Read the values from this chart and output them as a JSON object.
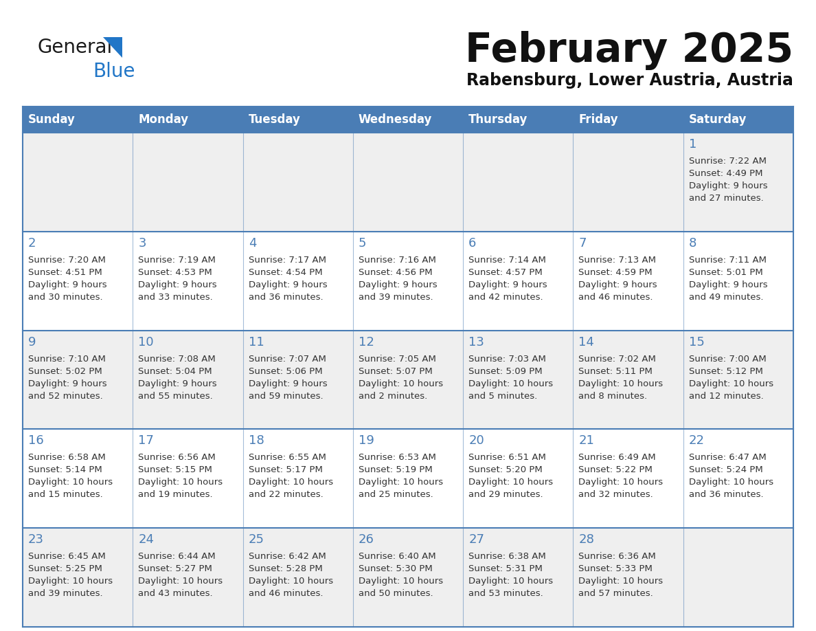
{
  "title": "February 2025",
  "subtitle": "Rabensburg, Lower Austria, Austria",
  "days_of_week": [
    "Sunday",
    "Monday",
    "Tuesday",
    "Wednesday",
    "Thursday",
    "Friday",
    "Saturday"
  ],
  "header_bg": "#4a7db5",
  "header_text": "#ffffff",
  "row_bg_odd": "#efefef",
  "row_bg_even": "#ffffff",
  "day_number_color": "#4a7db5",
  "text_color": "#333333",
  "border_color": "#4a7db5",
  "logo_black": "#1a1a1a",
  "logo_blue": "#2176c7",
  "title_color": "#111111",
  "subtitle_color": "#111111",
  "calendar_data": [
    [
      null,
      null,
      null,
      null,
      null,
      null,
      {
        "day": 1,
        "sunrise": "7:22 AM",
        "sunset": "4:49 PM",
        "daylight": "9 hours\nand 27 minutes."
      }
    ],
    [
      {
        "day": 2,
        "sunrise": "7:20 AM",
        "sunset": "4:51 PM",
        "daylight": "9 hours\nand 30 minutes."
      },
      {
        "day": 3,
        "sunrise": "7:19 AM",
        "sunset": "4:53 PM",
        "daylight": "9 hours\nand 33 minutes."
      },
      {
        "day": 4,
        "sunrise": "7:17 AM",
        "sunset": "4:54 PM",
        "daylight": "9 hours\nand 36 minutes."
      },
      {
        "day": 5,
        "sunrise": "7:16 AM",
        "sunset": "4:56 PM",
        "daylight": "9 hours\nand 39 minutes."
      },
      {
        "day": 6,
        "sunrise": "7:14 AM",
        "sunset": "4:57 PM",
        "daylight": "9 hours\nand 42 minutes."
      },
      {
        "day": 7,
        "sunrise": "7:13 AM",
        "sunset": "4:59 PM",
        "daylight": "9 hours\nand 46 minutes."
      },
      {
        "day": 8,
        "sunrise": "7:11 AM",
        "sunset": "5:01 PM",
        "daylight": "9 hours\nand 49 minutes."
      }
    ],
    [
      {
        "day": 9,
        "sunrise": "7:10 AM",
        "sunset": "5:02 PM",
        "daylight": "9 hours\nand 52 minutes."
      },
      {
        "day": 10,
        "sunrise": "7:08 AM",
        "sunset": "5:04 PM",
        "daylight": "9 hours\nand 55 minutes."
      },
      {
        "day": 11,
        "sunrise": "7:07 AM",
        "sunset": "5:06 PM",
        "daylight": "9 hours\nand 59 minutes."
      },
      {
        "day": 12,
        "sunrise": "7:05 AM",
        "sunset": "5:07 PM",
        "daylight": "10 hours\nand 2 minutes."
      },
      {
        "day": 13,
        "sunrise": "7:03 AM",
        "sunset": "5:09 PM",
        "daylight": "10 hours\nand 5 minutes."
      },
      {
        "day": 14,
        "sunrise": "7:02 AM",
        "sunset": "5:11 PM",
        "daylight": "10 hours\nand 8 minutes."
      },
      {
        "day": 15,
        "sunrise": "7:00 AM",
        "sunset": "5:12 PM",
        "daylight": "10 hours\nand 12 minutes."
      }
    ],
    [
      {
        "day": 16,
        "sunrise": "6:58 AM",
        "sunset": "5:14 PM",
        "daylight": "10 hours\nand 15 minutes."
      },
      {
        "day": 17,
        "sunrise": "6:56 AM",
        "sunset": "5:15 PM",
        "daylight": "10 hours\nand 19 minutes."
      },
      {
        "day": 18,
        "sunrise": "6:55 AM",
        "sunset": "5:17 PM",
        "daylight": "10 hours\nand 22 minutes."
      },
      {
        "day": 19,
        "sunrise": "6:53 AM",
        "sunset": "5:19 PM",
        "daylight": "10 hours\nand 25 minutes."
      },
      {
        "day": 20,
        "sunrise": "6:51 AM",
        "sunset": "5:20 PM",
        "daylight": "10 hours\nand 29 minutes."
      },
      {
        "day": 21,
        "sunrise": "6:49 AM",
        "sunset": "5:22 PM",
        "daylight": "10 hours\nand 32 minutes."
      },
      {
        "day": 22,
        "sunrise": "6:47 AM",
        "sunset": "5:24 PM",
        "daylight": "10 hours\nand 36 minutes."
      }
    ],
    [
      {
        "day": 23,
        "sunrise": "6:45 AM",
        "sunset": "5:25 PM",
        "daylight": "10 hours\nand 39 minutes."
      },
      {
        "day": 24,
        "sunrise": "6:44 AM",
        "sunset": "5:27 PM",
        "daylight": "10 hours\nand 43 minutes."
      },
      {
        "day": 25,
        "sunrise": "6:42 AM",
        "sunset": "5:28 PM",
        "daylight": "10 hours\nand 46 minutes."
      },
      {
        "day": 26,
        "sunrise": "6:40 AM",
        "sunset": "5:30 PM",
        "daylight": "10 hours\nand 50 minutes."
      },
      {
        "day": 27,
        "sunrise": "6:38 AM",
        "sunset": "5:31 PM",
        "daylight": "10 hours\nand 53 minutes."
      },
      {
        "day": 28,
        "sunrise": "6:36 AM",
        "sunset": "5:33 PM",
        "daylight": "10 hours\nand 57 minutes."
      },
      null
    ]
  ]
}
